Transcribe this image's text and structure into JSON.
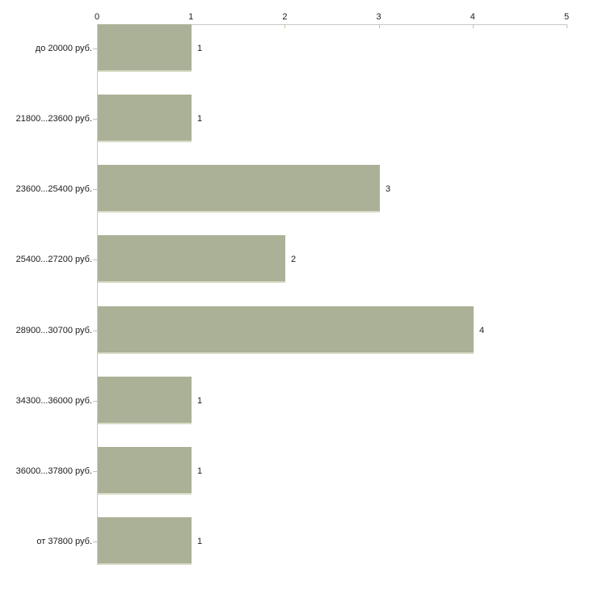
{
  "chart_data": {
    "type": "bar",
    "orientation": "horizontal",
    "title": "",
    "xlabel": "",
    "ylabel": "",
    "categories": [
      "до 20000 руб.",
      "21800...23600 руб.",
      "23600...25400 руб.",
      "25400...27200 руб.",
      "28900...30700 руб.",
      "34300...36000 руб.",
      "36000...37800 руб.",
      "от 37800 руб."
    ],
    "values": [
      1,
      1,
      3,
      2,
      4,
      1,
      1,
      1
    ],
    "value_labels": [
      "1",
      "1",
      "3",
      "2",
      "4",
      "1",
      "1",
      "1"
    ],
    "xlim": [
      0,
      5
    ],
    "x_ticks": [
      "0",
      "1",
      "2",
      "3",
      "4",
      "5"
    ],
    "axis_position": "top",
    "grid": false,
    "legend": "none",
    "bar_color": "#aab197",
    "bar_edge_color": "#d9dcc6",
    "axis_line_color": "#c8c8c8",
    "tick_mark_color": "#c3c3a2",
    "category_tick_color": "#c2c2b0",
    "text_color": "#1c1c1c",
    "background_color": "#ffffff"
  }
}
